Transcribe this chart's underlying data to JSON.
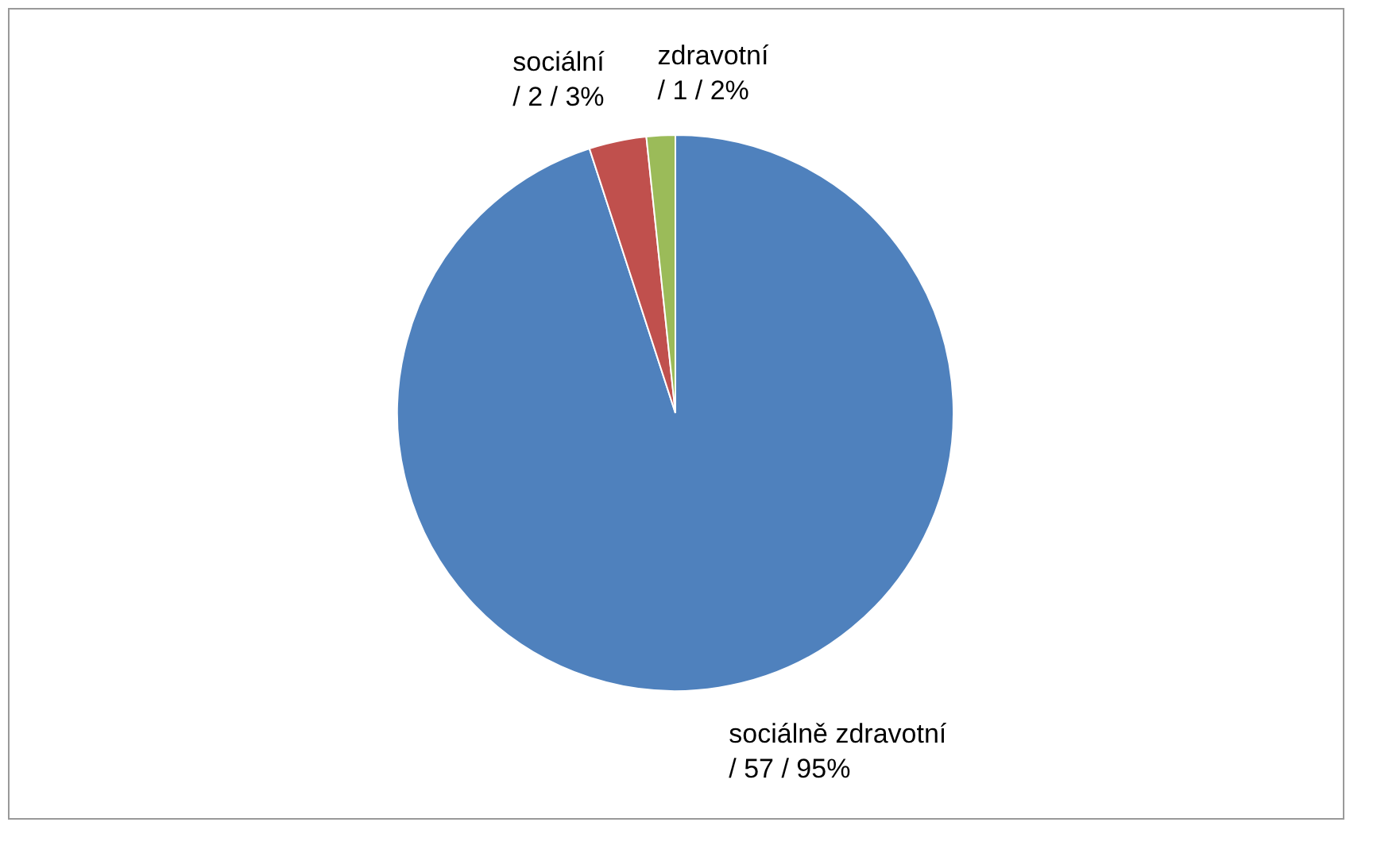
{
  "chart_data": {
    "type": "pie",
    "categories": [
      "sociálně zdravotní",
      "sociální",
      "zdravotní"
    ],
    "values": [
      57,
      2,
      1
    ],
    "colors": [
      "#4f81bd",
      "#c0504d",
      "#9bbb59"
    ],
    "value_labels": [
      "/ 57 / 95%",
      "/ 2 / 3%",
      "/ 1 / 2%"
    ],
    "legend": false
  }
}
